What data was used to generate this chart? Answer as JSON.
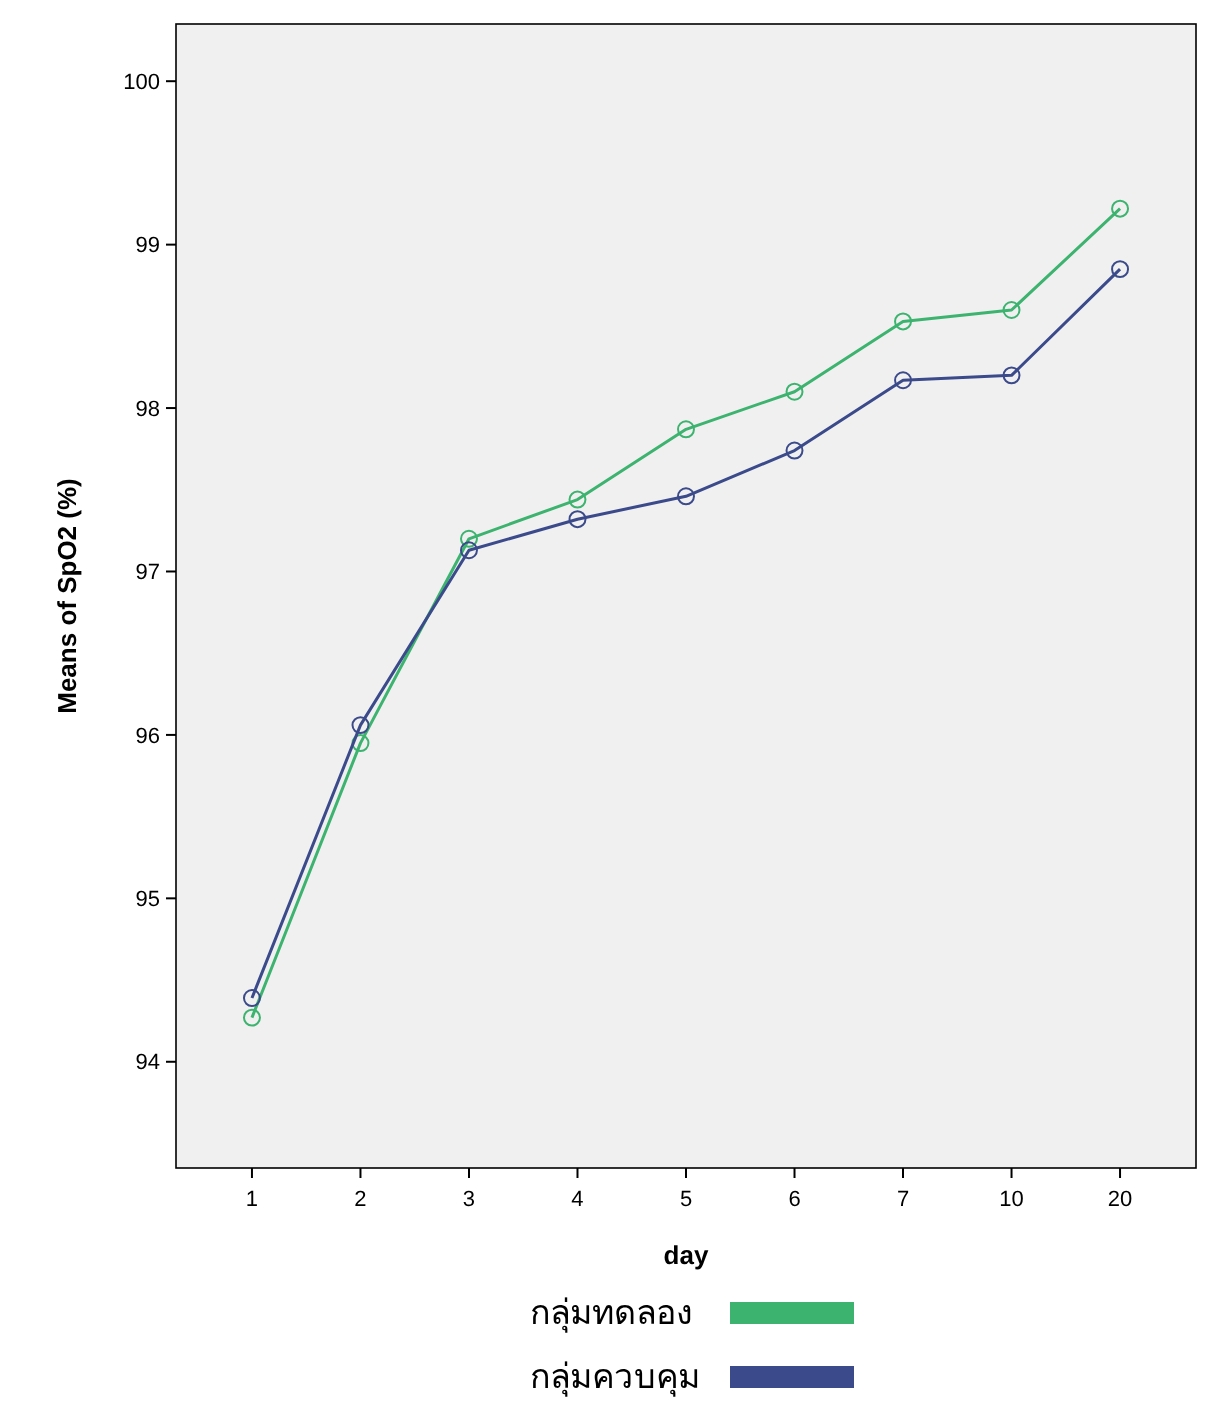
{
  "chart_data": {
    "type": "line",
    "xlabel": "day",
    "ylabel": "Means of SpO2 (%)",
    "categories": [
      "1",
      "2",
      "3",
      "4",
      "5",
      "6",
      "7",
      "10",
      "20"
    ],
    "series": [
      {
        "name": "กลุ่มทดลอง",
        "color": "#3cb36e",
        "values": [
          94.27,
          95.95,
          97.2,
          97.44,
          97.87,
          98.1,
          98.53,
          98.6,
          99.22
        ]
      },
      {
        "name": "กลุ่มควบคุม",
        "color": "#3b4a8a",
        "values": [
          94.39,
          96.06,
          97.13,
          97.32,
          97.46,
          97.74,
          98.17,
          98.2,
          98.85
        ]
      }
    ],
    "ylim": [
      93.35,
      100.35
    ],
    "yticks": [
      94,
      95,
      96,
      97,
      98,
      99,
      100
    ],
    "marker": "circle",
    "legend": "bottom",
    "grid": false
  }
}
